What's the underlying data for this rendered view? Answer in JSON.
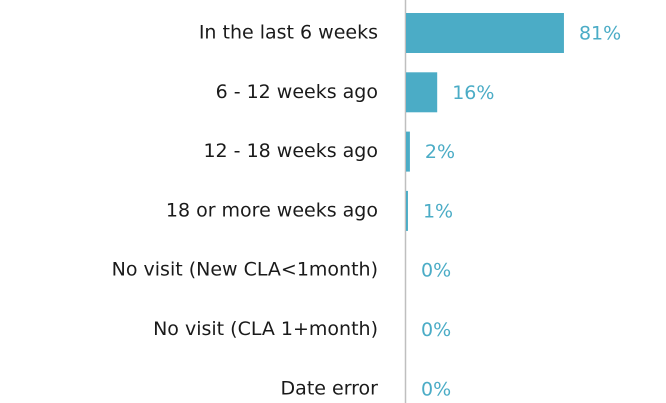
{
  "chart_data": {
    "type": "bar",
    "orientation": "horizontal",
    "categories": [
      "In the last 6 weeks",
      "6 - 12 weeks ago",
      "12 - 18 weeks ago",
      "18 or more weeks ago",
      "No visit (New CLA<1month)",
      "No visit (CLA 1+month)",
      "Date error"
    ],
    "values": [
      81,
      16,
      2,
      1,
      0,
      0,
      0
    ],
    "value_labels": [
      "81%",
      "16%",
      "2%",
      "1%",
      "0%",
      "0%",
      "0%"
    ],
    "color": "#4bacc6"
  }
}
